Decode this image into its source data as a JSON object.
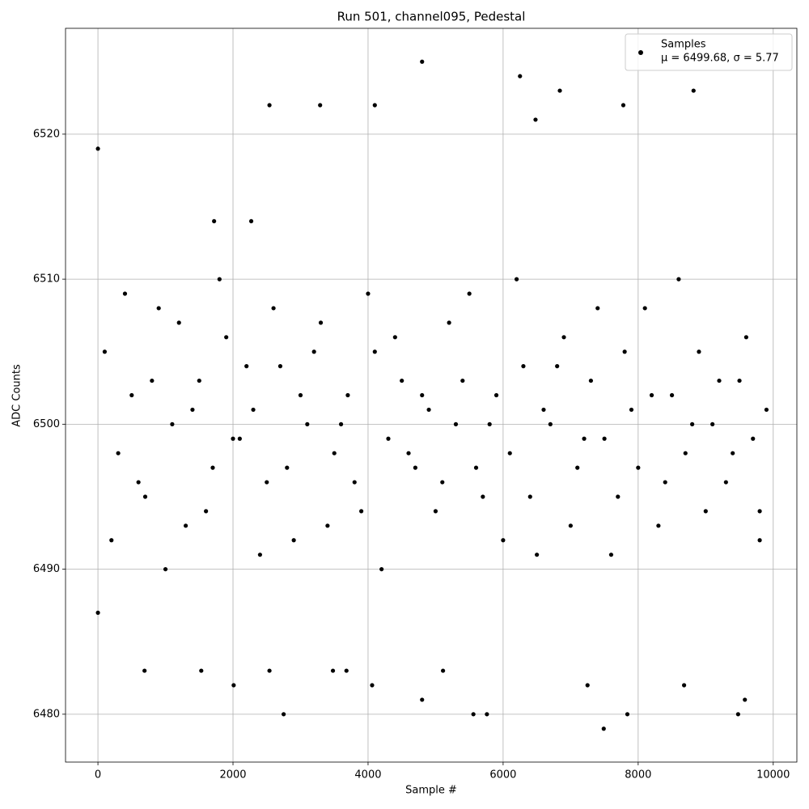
{
  "chart_data": {
    "type": "scatter",
    "title": "Run 501, channel095, Pedestal",
    "x_label": "Sample #",
    "y_label": "ADC Counts",
    "xlim": [
      -480,
      10350
    ],
    "ylim": [
      6476.7,
      6527.3
    ],
    "xticks": [
      0,
      2000,
      4000,
      6000,
      8000,
      10000
    ],
    "yticks": [
      6480,
      6490,
      6500,
      6510,
      6520
    ],
    "grid": true,
    "legend": "upper right",
    "legend_note": "μ = 6499.68, σ = 5.77",
    "series": [
      {
        "name": "Samples",
        "color": "#000000",
        "x": [
          0,
          0,
          4800,
          6250,
          6480,
          6840,
          8820,
          7490,
          2750,
          5560,
          5760,
          7840,
          9480,
          4800,
          9580,
          2010,
          4060,
          7250,
          8680,
          690,
          1530,
          2540,
          3480,
          3680,
          5110,
          2540,
          3290,
          4100,
          7780,
          1720,
          2270,
          100,
          300,
          500,
          700,
          900,
          1100,
          1300,
          1500,
          1700,
          1900,
          2100,
          2300,
          2500,
          2700,
          2900,
          3100,
          3300,
          3500,
          3700,
          3900,
          4100,
          4300,
          4500,
          4700,
          4900,
          5100,
          5300,
          5500,
          5700,
          5900,
          6100,
          6300,
          6500,
          6700,
          6900,
          7100,
          7300,
          7500,
          7700,
          7900,
          8100,
          8300,
          8500,
          8700,
          8900,
          9100,
          9300,
          9500,
          9700,
          9800,
          200,
          400,
          600,
          800,
          1000,
          1200,
          1400,
          1600,
          1800,
          2000,
          2200,
          2400,
          2600,
          2800,
          3000,
          3200,
          3400,
          3600,
          3800,
          4000,
          4200,
          4400,
          4600,
          4800,
          5000,
          5200,
          5400,
          5600,
          5800,
          6000,
          6200,
          6400,
          6600,
          6800,
          7000,
          7200,
          7400,
          7600,
          7800,
          8000,
          8200,
          8400,
          8600,
          8800,
          9000,
          9200,
          9400,
          9600,
          9800,
          9900
        ],
        "values": [
          6519,
          6487,
          6525,
          6524,
          6521,
          6523,
          6523,
          6479,
          6480,
          6480,
          6480,
          6480,
          6480,
          6481,
          6481,
          6482,
          6482,
          6482,
          6482,
          6483,
          6483,
          6483,
          6483,
          6483,
          6483,
          6522,
          6522,
          6522,
          6522,
          6514,
          6514,
          6505,
          6498,
          6502,
          6495,
          6508,
          6500,
          6493,
          6503,
          6497,
          6506,
          6499,
          6501,
          6496,
          6504,
          6492,
          6500,
          6507,
          6498,
          6502,
          6494,
          6505,
          6499,
          6503,
          6497,
          6501,
          6496,
          6500,
          6509,
          6495,
          6502,
          6498,
          6504,
          6491,
          6500,
          6506,
          6497,
          6503,
          6499,
          6495,
          6501,
          6508,
          6493,
          6502,
          6498,
          6505,
          6500,
          6496,
          6503,
          6499,
          6494,
          6492,
          6509,
          6496,
          6503,
          6490,
          6507,
          6501,
          6494,
          6510,
          6499,
          6504,
          6491,
          6508,
          6497,
          6502,
          6505,
          6493,
          6500,
          6496,
          6509,
          6490,
          6506,
          6498,
          6502,
          6494,
          6507,
          6503,
          6497,
          6500,
          6492,
          6510,
          6495,
          6501,
          6504,
          6493,
          6499,
          6508,
          6491,
          6505,
          6497,
          6502,
          6496,
          6510,
          6500,
          6494,
          6503,
          6498,
          6506,
          6492,
          6501
        ]
      }
    ]
  }
}
